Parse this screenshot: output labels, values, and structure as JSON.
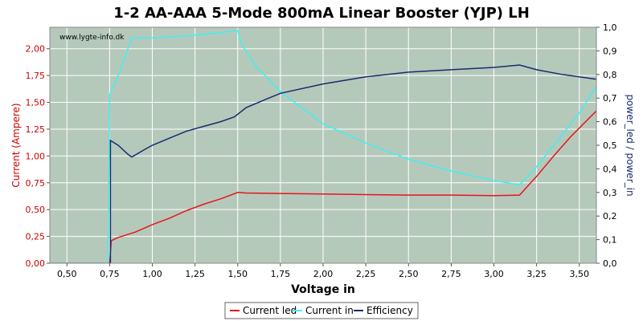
{
  "chart_data": {
    "type": "line",
    "title": "1-2 AA-AAA 5-Mode 800mA Linear Booster (YJP) LH",
    "watermark": "www.lygte-info.dk",
    "xlabel": "Voltage in",
    "ylabel_left": "Current (Ampere)",
    "ylabel_right": "power_led / power_in",
    "xlim": [
      0.4,
      3.6
    ],
    "ylim_left": [
      0,
      2.2
    ],
    "ylim_right": [
      0,
      1.0
    ],
    "x_ticks": [
      0.5,
      0.75,
      1.0,
      1.25,
      1.5,
      1.75,
      2.0,
      2.25,
      2.5,
      2.75,
      3.0,
      3.25,
      3.5
    ],
    "x_tick_labels": [
      "0,50",
      "0,75",
      "1,00",
      "1,25",
      "1,50",
      "1,75",
      "2,00",
      "2,25",
      "2,50",
      "2,75",
      "3,00",
      "3,25",
      "3,50"
    ],
    "y_left_ticks": [
      0,
      0.25,
      0.5,
      0.75,
      1.0,
      1.25,
      1.5,
      1.75,
      2.0
    ],
    "y_left_tick_labels": [
      "0,00",
      "0,25",
      "0,50",
      "0,75",
      "1,00",
      "1,25",
      "1,50",
      "1,75",
      "2,00"
    ],
    "y_right_ticks": [
      0,
      0.1,
      0.2,
      0.3,
      0.4,
      0.5,
      0.6,
      0.7,
      0.8,
      0.9,
      1.0
    ],
    "y_right_tick_labels": [
      "0,0",
      "0,1",
      "0,2",
      "0,3",
      "0,4",
      "0,5",
      "0,6",
      "0,7",
      "0,8",
      "0,9",
      "1,0"
    ],
    "grid": true,
    "legend_position": "bottom",
    "colors": {
      "plot_bg": "#b5c9bb",
      "grid": "#ffffff",
      "current_led": "#e8141d",
      "current_in": "#3ff0f0",
      "efficiency": "#1a2a6e"
    },
    "series": [
      {
        "name": "Current led",
        "axis": "left",
        "color": "#e8141d",
        "points": [
          [
            0.4,
            0.0
          ],
          [
            0.75,
            0.0
          ],
          [
            0.76,
            0.21
          ],
          [
            0.8,
            0.24
          ],
          [
            0.9,
            0.29
          ],
          [
            1.0,
            0.36
          ],
          [
            1.1,
            0.42
          ],
          [
            1.2,
            0.49
          ],
          [
            1.3,
            0.55
          ],
          [
            1.4,
            0.6
          ],
          [
            1.5,
            0.66
          ],
          [
            1.55,
            0.655
          ],
          [
            1.75,
            0.65
          ],
          [
            2.0,
            0.645
          ],
          [
            2.25,
            0.64
          ],
          [
            2.5,
            0.635
          ],
          [
            2.75,
            0.635
          ],
          [
            3.0,
            0.63
          ],
          [
            3.15,
            0.635
          ],
          [
            3.25,
            0.81
          ],
          [
            3.35,
            1.0
          ],
          [
            3.45,
            1.18
          ],
          [
            3.6,
            1.42
          ]
        ]
      },
      {
        "name": "Current in",
        "axis": "left",
        "color": "#3ff0f0",
        "points": [
          [
            0.4,
            0.0
          ],
          [
            0.74,
            0.0
          ],
          [
            0.75,
            1.57
          ],
          [
            0.8,
            1.75
          ],
          [
            0.88,
            2.1
          ],
          [
            1.0,
            2.1
          ],
          [
            1.2,
            2.12
          ],
          [
            1.4,
            2.15
          ],
          [
            1.5,
            2.17
          ],
          [
            1.52,
            2.05
          ],
          [
            1.6,
            1.85
          ],
          [
            1.75,
            1.6
          ],
          [
            2.0,
            1.3
          ],
          [
            2.25,
            1.12
          ],
          [
            2.5,
            0.97
          ],
          [
            2.75,
            0.86
          ],
          [
            3.0,
            0.77
          ],
          [
            3.15,
            0.73
          ],
          [
            3.25,
            0.9
          ],
          [
            3.4,
            1.2
          ],
          [
            3.5,
            1.4
          ],
          [
            3.6,
            1.65
          ]
        ]
      },
      {
        "name": "Efficiency",
        "axis": "right",
        "color": "#1a2a6e",
        "points": [
          [
            0.755,
            0.0
          ],
          [
            0.755,
            0.52
          ],
          [
            0.8,
            0.5
          ],
          [
            0.86,
            0.46
          ],
          [
            0.88,
            0.45
          ],
          [
            0.95,
            0.48
          ],
          [
            1.0,
            0.5
          ],
          [
            1.1,
            0.53
          ],
          [
            1.2,
            0.56
          ],
          [
            1.3,
            0.58
          ],
          [
            1.4,
            0.6
          ],
          [
            1.48,
            0.62
          ],
          [
            1.55,
            0.66
          ],
          [
            1.65,
            0.69
          ],
          [
            1.75,
            0.72
          ],
          [
            2.0,
            0.76
          ],
          [
            2.25,
            0.79
          ],
          [
            2.5,
            0.81
          ],
          [
            2.75,
            0.82
          ],
          [
            3.0,
            0.83
          ],
          [
            3.15,
            0.84
          ],
          [
            3.25,
            0.82
          ],
          [
            3.4,
            0.8
          ],
          [
            3.6,
            0.78
          ]
        ]
      }
    ]
  }
}
